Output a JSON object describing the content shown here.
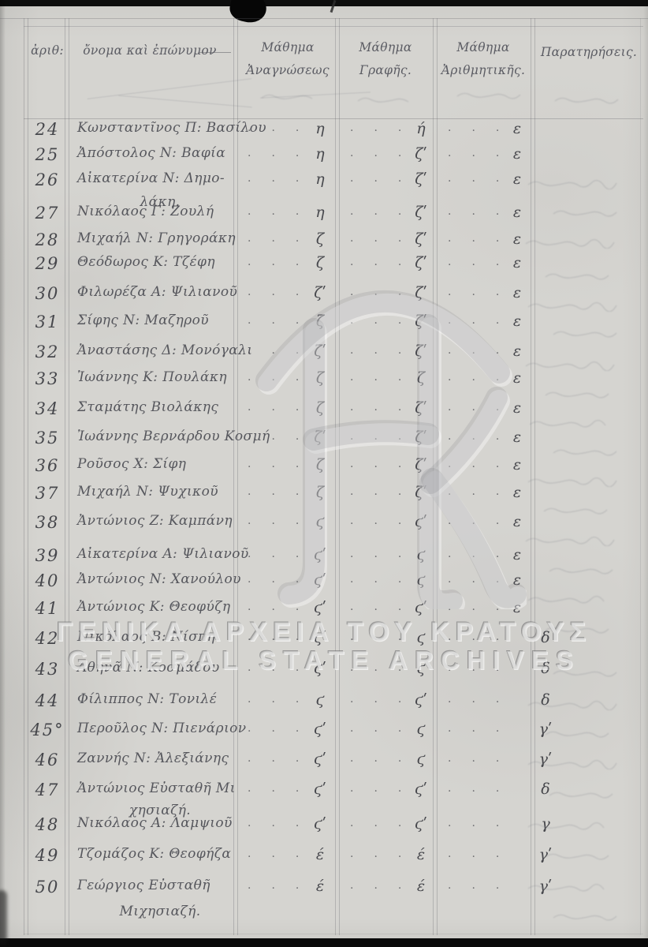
{
  "document": {
    "kind": "handwritten school register page (scan)",
    "colors": {
      "paper": "#d5d4d0",
      "ink": "#3b3c44",
      "rule_line": "#65656b",
      "scan_edge": "#0d0d0d"
    },
    "watermark": {
      "monogram": "ΓΑΚ",
      "line1": "ΓΕΝΙΚΑ ΑΡΧΕΙΑ ΤΟΥ ΚΡΑΤΟΥΣ",
      "line2": "GENERAL STATE ARCHIVES"
    },
    "table": {
      "headers": {
        "no": "ἀριθ:",
        "name": "ὄνομα καὶ ἐπώνυμον",
        "reading_l1": "Μάθημα",
        "reading_l2": "Ἀναγνώσεως",
        "writing_l1": "Μάθημα",
        "writing_l2": "Γραφῆς.",
        "arithmetic_l1": "Μάθημα",
        "arithmetic_l2": "Ἀριθμητικῆς.",
        "remarks": "Παρατηρήσεις."
      },
      "rows": [
        {
          "number": "24",
          "name": "Κωνσταντῖνος Π: Βασίλου",
          "name2": "",
          "grades": {
            "reading": "η",
            "writing": "ή",
            "arithmetic": "ε"
          }
        },
        {
          "number": "25",
          "name": "Ἀπόστολος Ν: Βαφία",
          "name2": "",
          "grades": {
            "reading": "η",
            "writing": "ζʹ",
            "arithmetic": "ε"
          }
        },
        {
          "number": "26",
          "name": "Αἰκατερίνα Ν: Δημο-",
          "name2": "λάκη.",
          "grades": {
            "reading": "η",
            "writing": "ζʹ",
            "arithmetic": "ε"
          }
        },
        {
          "number": "27",
          "name": "Νικόλαος Γ: Ζουλή",
          "name2": "",
          "grades": {
            "reading": "η",
            "writing": "ζʹ",
            "arithmetic": "ε"
          }
        },
        {
          "number": "28",
          "name": "Μιχαήλ Ν: Γρηγοράκη",
          "name2": "",
          "grades": {
            "reading": "ζ",
            "writing": "ζʹ",
            "arithmetic": "ε"
          }
        },
        {
          "number": "29",
          "name": "Θεόδωρος Κ: Τζέφη",
          "name2": "",
          "grades": {
            "reading": "ζ",
            "writing": "ζʹ",
            "arithmetic": "ε"
          }
        },
        {
          "number": "30",
          "name": "Φιλωρέζα Α: Ψιλιανοῦ",
          "name2": "",
          "grades": {
            "reading": "ζʹ",
            "writing": "ζʹ",
            "arithmetic": "ε"
          }
        },
        {
          "number": "31",
          "name": "Σίφης Ν: Μαζηροῦ",
          "name2": "",
          "grades": {
            "reading": "ζ",
            "writing": "ζʹ",
            "arithmetic": "ε"
          }
        },
        {
          "number": "32",
          "name": "Ἀναστάσης Δ: Μονόγαλι",
          "name2": "",
          "grades": {
            "reading": "ζʹ",
            "writing": "ζʹ",
            "arithmetic": "ε"
          }
        },
        {
          "number": "33",
          "name": "Ἰωάννης Κ: Πουλάκη",
          "name2": "",
          "grades": {
            "reading": "ζ",
            "writing": "ζ",
            "arithmetic": "ε"
          }
        },
        {
          "number": "34",
          "name": "Σταμάτης Βιολάκης",
          "name2": "",
          "grades": {
            "reading": "ζ",
            "writing": "ζʹ",
            "arithmetic": "ε"
          }
        },
        {
          "number": "35",
          "name": "Ἰωάννης Βερνάρδου Κοσμή",
          "name2": "",
          "grades": {
            "reading": "ζʹ",
            "writing": "ζʹ",
            "arithmetic": "ε"
          }
        },
        {
          "number": "36",
          "name": "Ροῦσος Χ: Σίφη",
          "name2": "",
          "grades": {
            "reading": "ζ",
            "writing": "ζʹ",
            "arithmetic": "ε"
          }
        },
        {
          "number": "37",
          "name": "Μιχαήλ Ν: Ψυχικοῦ",
          "name2": "",
          "grades": {
            "reading": "ζ",
            "writing": "ζʹ",
            "arithmetic": "ε"
          }
        },
        {
          "number": "38",
          "name": "Ἀντώνιος Ζ: Καμπάνη",
          "name2": "",
          "grades": {
            "reading": "ϛ",
            "writing": "ϛʹ",
            "arithmetic": "ε"
          }
        },
        {
          "number": "39",
          "name": "Αἰκατερίνα Α: Ψιλιανοῦ",
          "name2": "",
          "grades": {
            "reading": "ϛʹ",
            "writing": "ϛ",
            "arithmetic": "ε"
          }
        },
        {
          "number": "40",
          "name": "Ἀντώνιος Ν: Χανούλου",
          "name2": "",
          "grades": {
            "reading": "ϛʹ",
            "writing": "ϛ",
            "arithmetic": "ε"
          }
        },
        {
          "number": "41",
          "name": "Ἀντώνιος Κ: Θεοφύζη",
          "name2": "",
          "grades": {
            "reading": "ϛʹ",
            "writing": "ϛʹ",
            "arithmetic": "ε"
          }
        },
        {
          "number": "42",
          "name": "Νικόλαος Β: Νίσπη",
          "name2": "",
          "grades": {
            "reading": "ϛʹ",
            "writing": "ϛ",
            "arithmetic": "δ"
          }
        },
        {
          "number": "43",
          "name": "Ἀθηνᾶ Ν: Κοσμάδου",
          "name2": "",
          "grades": {
            "reading": "ϛʹ",
            "writing": "ϛ",
            "arithmetic": "δ"
          }
        },
        {
          "number": "44",
          "name": "Φίλιππος Ν: Τονιλέ",
          "name2": "",
          "grades": {
            "reading": "ϛ",
            "writing": "ϛʹ",
            "arithmetic": "δ"
          }
        },
        {
          "number": "45°",
          "name": "Περοῦλος Ν: Πιενάριον",
          "name2": "",
          "grades": {
            "reading": "ϛʹ",
            "writing": "ϛ",
            "arithmetic": "γʹ"
          }
        },
        {
          "number": "46",
          "name": "Ζαννής Ν: Ἀλεξιάνης",
          "name2": "",
          "grades": {
            "reading": "ϛʹ",
            "writing": "ϛ",
            "arithmetic": "γʹ"
          }
        },
        {
          "number": "47",
          "name": "Ἀντώνιος Εὐσταθῆ Μι",
          "name2": "χησιαζή.",
          "grades": {
            "reading": "ϛʹ",
            "writing": "ϛʹ",
            "arithmetic": "δ"
          }
        },
        {
          "number": "48",
          "name": "Νικόλαος Α: Λαμψιοῦ",
          "name2": "",
          "grades": {
            "reading": "ϛʹ",
            "writing": "ϛʹ",
            "arithmetic": "γ"
          }
        },
        {
          "number": "49",
          "name": "Τζομάζος Κ: Θεοφήζα",
          "name2": "",
          "grades": {
            "reading": "έ",
            "writing": "έ",
            "arithmetic": "γʹ"
          }
        },
        {
          "number": "50",
          "name": "Γεώργιος Εὐσταθῆ",
          "name2": "Μιχησιαζή.",
          "grades": {
            "reading": "έ",
            "writing": "έ",
            "arithmetic": "γʹ"
          }
        }
      ]
    }
  }
}
